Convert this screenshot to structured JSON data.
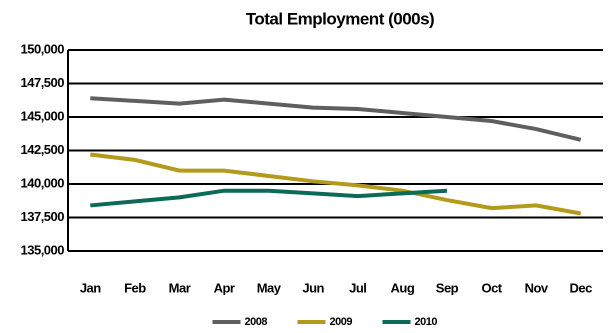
{
  "chart_data": {
    "type": "line",
    "title": "Total Employment (000s)",
    "categories": [
      "Jan",
      "Feb",
      "Mar",
      "Apr",
      "May",
      "Jun",
      "Jul",
      "Aug",
      "Sep",
      "Oct",
      "Nov",
      "Dec"
    ],
    "series": [
      {
        "name": "2008",
        "color": "#5f5f5f",
        "values": [
          146400,
          146200,
          146000,
          146300,
          146000,
          145700,
          145600,
          145300,
          145000,
          144700,
          144100,
          143300
        ]
      },
      {
        "name": "2009",
        "color": "#b39a1a",
        "values": [
          142200,
          141800,
          141000,
          141000,
          140600,
          140200,
          139900,
          139500,
          138800,
          138200,
          138400,
          137800
        ]
      },
      {
        "name": "2010",
        "color": "#0c6b58",
        "values": [
          138400,
          138700,
          139000,
          139500,
          139500,
          139300,
          139100,
          139300,
          139500,
          null,
          null,
          null
        ]
      }
    ],
    "ylim": [
      135000,
      150000
    ],
    "yticks": [
      {
        "value": 135000,
        "label": "135,000"
      },
      {
        "value": 137500,
        "label": "137,500"
      },
      {
        "value": 140000,
        "label": "140,000"
      },
      {
        "value": 142500,
        "label": "142,500"
      },
      {
        "value": 145000,
        "label": "145,000"
      },
      {
        "value": 147500,
        "label": "147,500"
      },
      {
        "value": 150000,
        "label": "150,000"
      }
    ],
    "grid": true,
    "legend": "bottom"
  }
}
